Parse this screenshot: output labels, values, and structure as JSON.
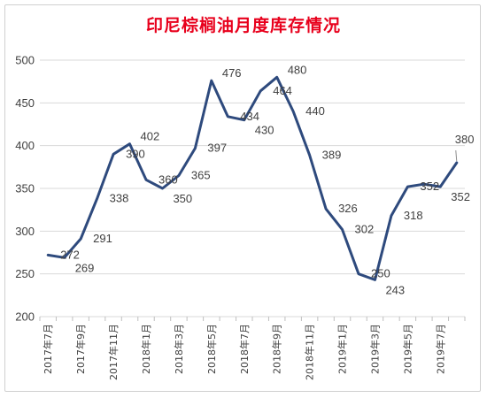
{
  "chart_data": {
    "type": "line",
    "title": "印尼棕榈油月度库存情况",
    "xlabel": "",
    "ylabel": "",
    "ylim": [
      200,
      500
    ],
    "yticks": [
      200,
      250,
      300,
      350,
      400,
      450,
      500
    ],
    "grid": true,
    "legend": "none",
    "x": [
      "2017年7月",
      "2017年8月",
      "2017年9月",
      "2017年10月",
      "2017年11月",
      "2017年12月",
      "2018年1月",
      "2018年2月",
      "2018年3月",
      "2018年4月",
      "2018年5月",
      "2018年6月",
      "2018年7月",
      "2018年8月",
      "2018年9月",
      "2018年10月",
      "2018年11月",
      "2018年12月",
      "2019年1月",
      "2019年2月",
      "2019年3月",
      "2019年4月",
      "2019年5月",
      "2019年6月",
      "2019年7月",
      "2019年8月"
    ],
    "xtick_labels": [
      "2017年7月",
      "2017年9月",
      "2017年11月",
      "2018年1月",
      "2018年3月",
      "2018年5月",
      "2018年7月",
      "2018年9月",
      "2018年11月",
      "2019年1月",
      "2019年3月",
      "2019年5月",
      "2019年7月"
    ],
    "series": [
      {
        "values": [
          272,
          269,
          291,
          338,
          390,
          402,
          360,
          350,
          365,
          397,
          476,
          434,
          430,
          464,
          480,
          440,
          389,
          326,
          302,
          250,
          243,
          318,
          352,
          355,
          352,
          380
        ],
        "labels": [
          "272",
          "269",
          "291",
          "338",
          "390",
          "402",
          "360",
          "350",
          "365",
          "397",
          "476",
          "434",
          "430",
          "464",
          "480",
          "440",
          "389",
          "326",
          "302",
          "250",
          "243",
          "318",
          "352",
          "",
          "352",
          "380"
        ],
        "color": "#2e4a7d"
      }
    ]
  }
}
